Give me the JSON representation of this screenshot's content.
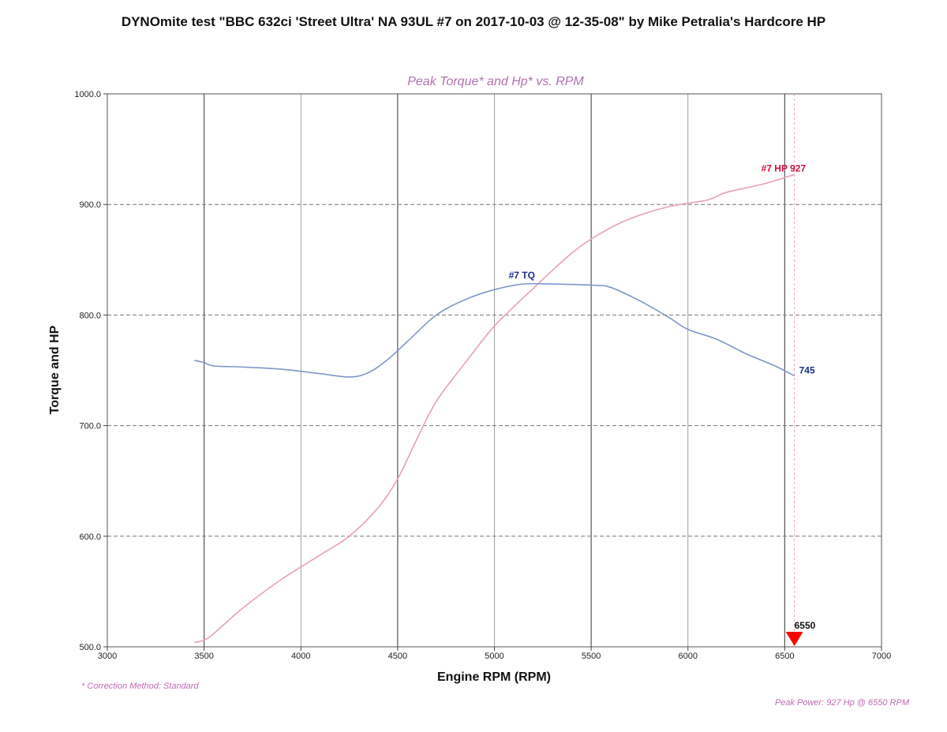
{
  "page_title": "DYNOmite test \"BBC 632ci 'Street Ultra' NA 93UL #7 on 2017-10-03  @ 12-35-08\" by Mike Petralia's Hardcore HP",
  "footnote_left": "* Correction Method: Standard",
  "footnote_right": "Peak Power: 927 Hp @ 6550 RPM",
  "colors": {
    "hp_line": "#e8a1b1",
    "tq_line": "#7f97c8",
    "hp_label": "#d0103a",
    "tq_label": "#1a2f8a",
    "subtitle": "#b272b0",
    "marker": "#ff0000"
  },
  "chart_data": {
    "type": "line",
    "title": "Peak Torque* and Hp* vs. RPM",
    "xlabel": "Engine RPM (RPM)",
    "ylabel": "Torque and HP",
    "xlim": [
      3000,
      7000
    ],
    "ylim": [
      500,
      1000
    ],
    "x_ticks": [
      3000,
      3500,
      4000,
      4500,
      5000,
      5500,
      6000,
      6500,
      7000
    ],
    "x_tick_labels": [
      "3000",
      "3500",
      "4000",
      "4500",
      "5000",
      "5500",
      "6000",
      "6500",
      "7000"
    ],
    "y_ticks": [
      500,
      600,
      700,
      800,
      900,
      1000
    ],
    "y_tick_labels": [
      "500.0",
      "600.0",
      "700.0",
      "800.0",
      "900.0",
      "1000.0"
    ],
    "grid": true,
    "series": [
      {
        "name": "#7 HP",
        "x": [
          3450,
          3500,
          3550,
          3700,
          3900,
          4100,
          4250,
          4400,
          4500,
          4600,
          4700,
          4850,
          5000,
          5200,
          5400,
          5550,
          5700,
          5900,
          6100,
          6200,
          6400,
          6550
        ],
        "values": [
          504,
          506,
          512,
          535,
          561,
          583,
          600,
          626,
          652,
          688,
          722,
          757,
          790,
          824,
          856,
          874,
          887,
          898,
          904,
          911,
          919,
          927
        ]
      },
      {
        "name": "#7 TQ",
        "x": [
          3450,
          3500,
          3550,
          3700,
          3900,
          4100,
          4250,
          4350,
          4450,
          4550,
          4700,
          4850,
          5000,
          5150,
          5300,
          5500,
          5600,
          5750,
          5900,
          6000,
          6150,
          6300,
          6450,
          6550
        ],
        "values": [
          759,
          757,
          754,
          753,
          751,
          747,
          744,
          748,
          760,
          776,
          800,
          814,
          823,
          828,
          828,
          827,
          825,
          813,
          798,
          787,
          778,
          765,
          754,
          745
        ]
      }
    ],
    "annotations": [
      {
        "text": "#7 HP 927",
        "series": "#7 HP",
        "x": 6550,
        "y": 927
      },
      {
        "text": "#7 TQ",
        "series": "#7 TQ",
        "x": 5150,
        "y": 828
      },
      {
        "text": "745",
        "series": "#7 TQ",
        "x": 6550,
        "y": 745
      },
      {
        "text": "6550",
        "marker": "triangle-down",
        "x": 6550,
        "y": 500
      }
    ]
  }
}
